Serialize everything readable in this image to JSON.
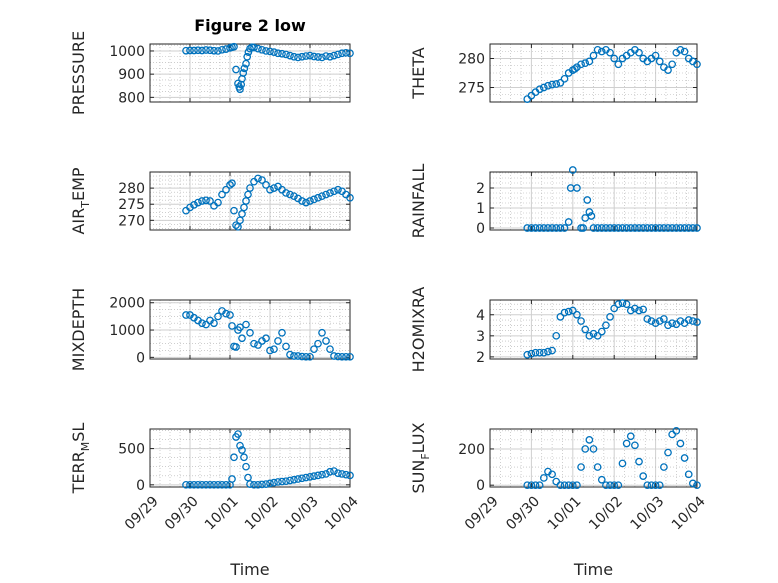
{
  "figure": {
    "title": "Figure 2 low"
  },
  "colors": {
    "marker": "#0072BD",
    "axis": "#262626",
    "grid": "#b0b0b0",
    "background": "#ffffff"
  },
  "chart_data": [
    {
      "type": "scatter",
      "ylabel": "PRESSURE",
      "title": "Figure 2 low",
      "x_ticklabels": [],
      "y_ticks": [
        800,
        900,
        1000
      ],
      "y_ticklabels": [
        "800",
        "900",
        "1000"
      ],
      "ylim": [
        780,
        1030
      ],
      "xlim": [
        0,
        5
      ],
      "grid": "on",
      "x": [
        0.9,
        1.0,
        1.1,
        1.2,
        1.3,
        1.4,
        1.5,
        1.6,
        1.7,
        1.8,
        1.9,
        2.0,
        2.05,
        2.1,
        2.15,
        2.2,
        2.23,
        2.25,
        2.28,
        2.3,
        2.33,
        2.36,
        2.4,
        2.43,
        2.46,
        2.5,
        2.55,
        2.6,
        2.7,
        2.8,
        2.9,
        3.0,
        3.1,
        3.2,
        3.3,
        3.4,
        3.5,
        3.6,
        3.7,
        3.8,
        3.9,
        4.0,
        4.1,
        4.2,
        4.3,
        4.4,
        4.5,
        4.6,
        4.7,
        4.8,
        4.9,
        5.0
      ],
      "y": [
        1001,
        1002,
        1002,
        1003,
        1002,
        1004,
        1003,
        1001,
        1000,
        1005,
        1008,
        1013,
        1016,
        1018,
        920,
        860,
        845,
        835,
        855,
        880,
        905,
        925,
        945,
        975,
        995,
        1010,
        1016,
        1015,
        1010,
        1005,
        1000,
        998,
        995,
        990,
        988,
        985,
        980,
        975,
        972,
        975,
        978,
        980,
        976,
        974,
        972,
        978,
        975,
        980,
        985,
        990,
        992,
        990
      ]
    },
    {
      "type": "scatter",
      "ylabel": "THETA",
      "x_ticklabels": [],
      "y_ticks": [
        275,
        280
      ],
      "y_ticklabels": [
        "275",
        "280"
      ],
      "ylim": [
        272.5,
        282.5
      ],
      "xlim": [
        0,
        5
      ],
      "grid": "on",
      "x": [
        0.9,
        1.0,
        1.1,
        1.2,
        1.3,
        1.4,
        1.5,
        1.6,
        1.7,
        1.8,
        1.9,
        2.0,
        2.05,
        2.1,
        2.2,
        2.3,
        2.4,
        2.5,
        2.6,
        2.7,
        2.8,
        2.9,
        3.0,
        3.1,
        3.2,
        3.3,
        3.4,
        3.5,
        3.6,
        3.7,
        3.8,
        3.9,
        4.0,
        4.1,
        4.2,
        4.3,
        4.4,
        4.5,
        4.6,
        4.7,
        4.8,
        4.9,
        5.0
      ],
      "y": [
        273.0,
        273.6,
        274.2,
        274.7,
        275.0,
        275.3,
        275.5,
        275.6,
        275.8,
        276.5,
        277.5,
        278.0,
        278.2,
        278.5,
        279.0,
        279.2,
        279.5,
        280.5,
        281.5,
        281.2,
        281.5,
        281.0,
        280.0,
        279.0,
        280.0,
        280.5,
        281.0,
        281.5,
        281.0,
        280.0,
        279.5,
        280.0,
        280.5,
        279.5,
        278.5,
        278.0,
        279.0,
        281.0,
        281.5,
        281.2,
        280.0,
        279.5,
        279.0
      ]
    },
    {
      "type": "scatter",
      "ylabel": "AIR_TEMP",
      "ylabel_parts": [
        "AIR",
        "T",
        "EMP"
      ],
      "x_ticklabels": [],
      "y_ticks": [
        270,
        275,
        280
      ],
      "y_ticklabels": [
        "270",
        "275",
        "280"
      ],
      "ylim": [
        267,
        285
      ],
      "xlim": [
        0,
        5
      ],
      "grid": "on",
      "x": [
        0.9,
        1.0,
        1.1,
        1.2,
        1.3,
        1.4,
        1.5,
        1.6,
        1.7,
        1.8,
        1.9,
        2.0,
        2.05,
        2.1,
        2.15,
        2.2,
        2.25,
        2.3,
        2.35,
        2.4,
        2.45,
        2.5,
        2.6,
        2.7,
        2.8,
        2.9,
        3.0,
        3.1,
        3.2,
        3.3,
        3.4,
        3.5,
        3.6,
        3.7,
        3.8,
        3.9,
        4.0,
        4.1,
        4.2,
        4.3,
        4.4,
        4.5,
        4.6,
        4.7,
        4.8,
        4.9,
        5.0
      ],
      "y": [
        273.0,
        274.0,
        274.8,
        275.5,
        276.0,
        276.2,
        276.0,
        274.5,
        275.5,
        278.0,
        279.5,
        281.0,
        281.5,
        273.0,
        268.5,
        268.0,
        270.0,
        272.0,
        274.0,
        276.0,
        278.0,
        280.0,
        282.0,
        283.0,
        282.5,
        281.0,
        279.5,
        280.0,
        280.5,
        279.5,
        278.5,
        278.0,
        277.5,
        276.8,
        276.0,
        275.5,
        276.0,
        276.5,
        277.0,
        277.5,
        278.0,
        278.5,
        279.0,
        279.5,
        279.0,
        278.0,
        277.0
      ]
    },
    {
      "type": "scatter",
      "ylabel": "RAINFALL",
      "x_ticklabels": [],
      "y_ticks": [
        0,
        1,
        2
      ],
      "y_ticklabels": [
        "0",
        "1",
        "2"
      ],
      "ylim": [
        -0.1,
        2.8
      ],
      "xlim": [
        0,
        5
      ],
      "grid": "on",
      "x": [
        0.9,
        1.0,
        1.1,
        1.2,
        1.3,
        1.4,
        1.5,
        1.6,
        1.7,
        1.8,
        1.9,
        1.95,
        2.0,
        2.1,
        2.2,
        2.25,
        2.3,
        2.35,
        2.4,
        2.45,
        2.5,
        2.6,
        2.7,
        2.8,
        2.9,
        3.0,
        3.1,
        3.2,
        3.3,
        3.4,
        3.5,
        3.6,
        3.7,
        3.8,
        3.9,
        4.0,
        4.1,
        4.2,
        4.3,
        4.4,
        4.5,
        4.6,
        4.7,
        4.8,
        4.9,
        5.0
      ],
      "y": [
        0,
        0,
        0,
        0,
        0,
        0,
        0,
        0,
        0,
        0,
        0.3,
        2.0,
        2.9,
        2.0,
        0,
        0,
        0.5,
        1.4,
        0.8,
        0.6,
        0,
        0,
        0,
        0,
        0,
        0,
        0,
        0,
        0,
        0,
        0,
        0,
        0,
        0,
        0,
        0,
        0,
        0,
        0,
        0,
        0,
        0,
        0,
        0,
        0,
        0
      ]
    },
    {
      "type": "scatter",
      "ylabel": "MIXDEPTH",
      "x_ticklabels": [],
      "y_ticks": [
        0,
        1000,
        2000
      ],
      "y_ticklabels": [
        "0",
        "1000",
        "2000"
      ],
      "ylim": [
        -60,
        2100
      ],
      "xlim": [
        0,
        5
      ],
      "grid": "on",
      "x": [
        0.9,
        1.0,
        1.1,
        1.2,
        1.3,
        1.4,
        1.5,
        1.6,
        1.7,
        1.8,
        1.9,
        2.0,
        2.05,
        2.1,
        2.15,
        2.2,
        2.25,
        2.3,
        2.4,
        2.5,
        2.6,
        2.7,
        2.8,
        2.9,
        3.0,
        3.1,
        3.2,
        3.3,
        3.4,
        3.5,
        3.6,
        3.7,
        3.8,
        3.9,
        4.0,
        4.1,
        4.2,
        4.3,
        4.4,
        4.5,
        4.6,
        4.7,
        4.8,
        4.9,
        5.0
      ],
      "y": [
        1550,
        1550,
        1450,
        1350,
        1250,
        1200,
        1350,
        1250,
        1500,
        1700,
        1600,
        1550,
        1150,
        400,
        380,
        1000,
        1100,
        700,
        1200,
        900,
        500,
        450,
        600,
        700,
        250,
        300,
        600,
        900,
        400,
        100,
        50,
        50,
        30,
        20,
        20,
        300,
        500,
        900,
        600,
        300,
        50,
        30,
        20,
        20,
        20
      ]
    },
    {
      "type": "scatter",
      "ylabel": "H2OMIXRA",
      "x_ticklabels": [],
      "y_ticks": [
        2,
        3,
        4
      ],
      "y_ticklabels": [
        "2",
        "3",
        "4"
      ],
      "ylim": [
        1.9,
        4.7
      ],
      "xlim": [
        0,
        5
      ],
      "grid": "on",
      "x": [
        0.9,
        1.0,
        1.1,
        1.2,
        1.3,
        1.4,
        1.5,
        1.6,
        1.7,
        1.8,
        1.9,
        2.0,
        2.1,
        2.2,
        2.3,
        2.4,
        2.5,
        2.6,
        2.7,
        2.8,
        2.9,
        3.0,
        3.1,
        3.2,
        3.3,
        3.4,
        3.5,
        3.6,
        3.7,
        3.8,
        3.9,
        4.0,
        4.1,
        4.2,
        4.3,
        4.4,
        4.5,
        4.6,
        4.7,
        4.8,
        4.9,
        5.0
      ],
      "y": [
        2.1,
        2.15,
        2.2,
        2.2,
        2.2,
        2.25,
        2.3,
        3.0,
        3.9,
        4.1,
        4.15,
        4.2,
        4.0,
        3.7,
        3.3,
        3.0,
        3.1,
        3.0,
        3.2,
        3.5,
        3.9,
        4.3,
        4.5,
        4.55,
        4.5,
        4.2,
        4.3,
        4.2,
        4.25,
        3.8,
        3.7,
        3.6,
        3.7,
        3.8,
        3.5,
        3.6,
        3.55,
        3.7,
        3.6,
        3.75,
        3.7,
        3.65
      ]
    },
    {
      "type": "scatter",
      "ylabel": "TERR_MSL",
      "ylabel_parts": [
        "TERR",
        "M",
        "SL"
      ],
      "xlabel": "Time",
      "x_ticks": [
        0,
        1,
        2,
        3,
        4,
        5
      ],
      "x_ticklabels": [
        "09/29",
        "09/30",
        "10/01",
        "10/02",
        "10/03",
        "10/04"
      ],
      "y_ticks": [
        0,
        500
      ],
      "y_ticklabels": [
        "0",
        "500"
      ],
      "ylim": [
        -30,
        770
      ],
      "xlim": [
        0,
        5
      ],
      "grid": "on",
      "x": [
        0.9,
        1.0,
        1.1,
        1.2,
        1.3,
        1.4,
        1.5,
        1.6,
        1.7,
        1.8,
        1.9,
        2.0,
        2.05,
        2.1,
        2.15,
        2.2,
        2.25,
        2.3,
        2.35,
        2.4,
        2.45,
        2.5,
        2.6,
        2.7,
        2.8,
        2.9,
        3.0,
        3.1,
        3.2,
        3.3,
        3.4,
        3.5,
        3.6,
        3.7,
        3.8,
        3.9,
        4.0,
        4.1,
        4.2,
        4.3,
        4.4,
        4.5,
        4.6,
        4.7,
        4.8,
        4.9,
        5.0
      ],
      "y": [
        0,
        0,
        0,
        0,
        0,
        0,
        0,
        0,
        0,
        0,
        0,
        0,
        80,
        380,
        660,
        700,
        540,
        480,
        380,
        250,
        100,
        10,
        0,
        0,
        5,
        10,
        20,
        30,
        40,
        45,
        50,
        60,
        70,
        80,
        90,
        100,
        110,
        120,
        130,
        140,
        150,
        180,
        190,
        160,
        150,
        140,
        130
      ]
    },
    {
      "type": "scatter",
      "ylabel": "SUN_FLUX",
      "ylabel_parts": [
        "SUN",
        "F",
        "LUX"
      ],
      "xlabel": "Time",
      "x_ticks": [
        0,
        1,
        2,
        3,
        4,
        5
      ],
      "x_ticklabels": [
        "09/29",
        "09/30",
        "10/01",
        "10/02",
        "10/03",
        "10/04"
      ],
      "y_ticks": [
        0,
        200
      ],
      "y_ticklabels": [
        "0",
        "200"
      ],
      "ylim": [
        -10,
        310
      ],
      "xlim": [
        0,
        5
      ],
      "grid": "on",
      "x": [
        0.9,
        1.0,
        1.1,
        1.2,
        1.3,
        1.4,
        1.5,
        1.6,
        1.7,
        1.8,
        1.9,
        2.0,
        2.1,
        2.2,
        2.3,
        2.4,
        2.5,
        2.6,
        2.7,
        2.8,
        2.9,
        3.0,
        3.1,
        3.2,
        3.3,
        3.4,
        3.5,
        3.6,
        3.7,
        3.8,
        3.9,
        4.0,
        4.1,
        4.2,
        4.3,
        4.4,
        4.5,
        4.6,
        4.7,
        4.8,
        4.9,
        5.0
      ],
      "y": [
        0,
        0,
        0,
        0,
        40,
        75,
        60,
        20,
        0,
        0,
        0,
        0,
        0,
        100,
        200,
        250,
        200,
        100,
        30,
        0,
        0,
        0,
        0,
        120,
        230,
        270,
        220,
        130,
        50,
        0,
        0,
        0,
        0,
        100,
        180,
        280,
        300,
        230,
        150,
        60,
        10,
        0
      ]
    }
  ]
}
